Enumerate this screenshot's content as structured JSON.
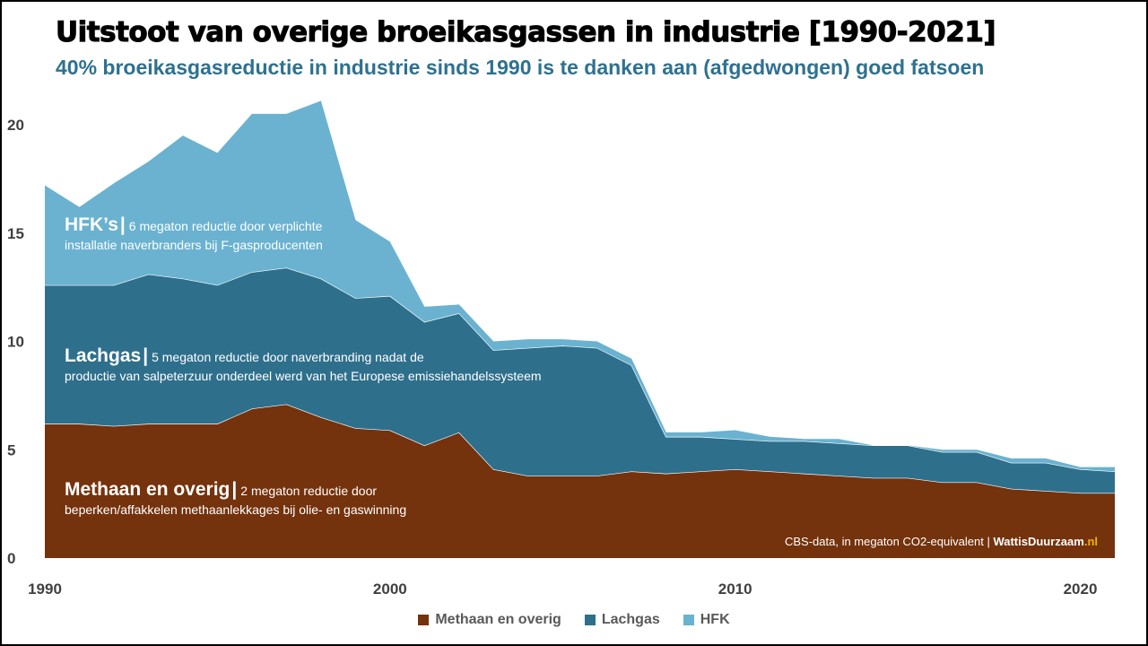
{
  "title": "Uitstoot van overige broeikasgassen in industrie [1990-2021]",
  "subtitle": "40% broeikasgasreductie in industrie sinds 1990 is te danken aan (afgedwongen) goed fatsoen",
  "annotations": {
    "hfk": {
      "label": "HFK’s",
      "separator": "|",
      "line1": "6 megaton reductie door verplichte",
      "line2": "installatie naverbranders bij F-gasproducenten"
    },
    "lachgas": {
      "label": "Lachgas",
      "separator": "|",
      "line1": "5 megaton reductie door naverbranding nadat de",
      "line2": "productie van salpeterzuur onderdeel werd van het Europese emissiehandelssysteem"
    },
    "methaan": {
      "label": "Methaan en overig",
      "separator": "|",
      "line1": "2 megaton reductie door",
      "line2": "beperken/affakkelen methaanlekkages bij olie- en gaswinning"
    }
  },
  "source": {
    "text": "CBS-data, in megaton CO2-equivalent |",
    "brand_main": "WattisDuurzaam",
    "brand_tld": ".nl"
  },
  "colors": {
    "methaan": "#74320d",
    "lachgas": "#2e6f8c",
    "hfk": "#6ab2d0",
    "title": "#000000",
    "subtitle": "#2e7190",
    "brand_accent": "#f5b400"
  },
  "chart_data": {
    "type": "area",
    "stacked": true,
    "title": "Uitstoot van overige broeikasgassen in industrie [1990-2021]",
    "xlabel": "",
    "ylabel": "megaton CO2-equivalent",
    "ylim": [
      0,
      21.5
    ],
    "xlim": [
      1990,
      2021
    ],
    "yticks": [
      0,
      5,
      10,
      15,
      20
    ],
    "xticks": [
      1990,
      2000,
      2010,
      2020
    ],
    "grid": false,
    "legend_position": "bottom-center",
    "x": [
      1990,
      1991,
      1992,
      1993,
      1994,
      1995,
      1996,
      1997,
      1998,
      1999,
      2000,
      2001,
      2002,
      2003,
      2004,
      2005,
      2006,
      2007,
      2008,
      2009,
      2010,
      2011,
      2012,
      2013,
      2014,
      2015,
      2016,
      2017,
      2018,
      2019,
      2020,
      2021
    ],
    "series": [
      {
        "name": "Methaan en overig",
        "values": [
          6.2,
          6.2,
          6.1,
          6.2,
          6.2,
          6.2,
          6.9,
          7.1,
          6.5,
          6.0,
          5.9,
          5.2,
          5.8,
          4.1,
          3.8,
          3.8,
          3.8,
          4.0,
          3.9,
          4.0,
          4.1,
          4.0,
          3.9,
          3.8,
          3.7,
          3.7,
          3.5,
          3.5,
          3.2,
          3.1,
          3.0,
          3.0
        ]
      },
      {
        "name": "Lachgas",
        "values": [
          6.4,
          6.4,
          6.5,
          6.9,
          6.7,
          6.4,
          6.3,
          6.3,
          6.4,
          6.0,
          6.2,
          5.7,
          5.5,
          5.5,
          5.9,
          6.0,
          5.9,
          4.9,
          1.7,
          1.6,
          1.4,
          1.4,
          1.5,
          1.5,
          1.5,
          1.5,
          1.4,
          1.4,
          1.2,
          1.3,
          1.1,
          1.0
        ]
      },
      {
        "name": "HFK",
        "values": [
          4.6,
          3.6,
          4.7,
          5.2,
          6.6,
          6.1,
          7.3,
          7.1,
          8.2,
          3.6,
          2.5,
          0.7,
          0.4,
          0.4,
          0.4,
          0.3,
          0.3,
          0.3,
          0.2,
          0.2,
          0.4,
          0.2,
          0.1,
          0.2,
          0.0,
          0.0,
          0.1,
          0.1,
          0.2,
          0.2,
          0.1,
          0.2
        ]
      }
    ]
  },
  "legend": [
    {
      "name": "Methaan en overig",
      "color": "#74320d"
    },
    {
      "name": "Lachgas",
      "color": "#2e6f8c"
    },
    {
      "name": "HFK",
      "color": "#6ab2d0"
    }
  ]
}
